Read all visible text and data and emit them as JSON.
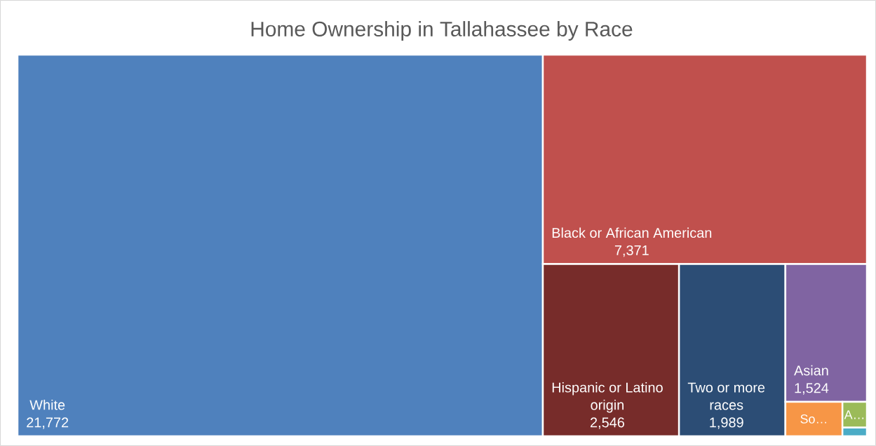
{
  "chart_data": {
    "type": "other",
    "title": "Home Ownership in Tallahassee by Race",
    "categories": [
      "White",
      "Black or African American",
      "Hispanic or Latino origin",
      "Two or more races",
      "Asian",
      "So…",
      "A…",
      null
    ],
    "values": [
      21772,
      7371,
      2546,
      1989,
      1524,
      null,
      null,
      null
    ],
    "value_labels": [
      "21,772",
      "7,371",
      "2,546",
      "1,989",
      "1,524",
      null,
      null,
      null
    ],
    "colors": [
      "#4f81bd",
      "#c0504d",
      "#772c2a",
      "#2c4d75",
      "#8064a2",
      "#f79646",
      "#9bbb59",
      "#4bacc6"
    ]
  }
}
